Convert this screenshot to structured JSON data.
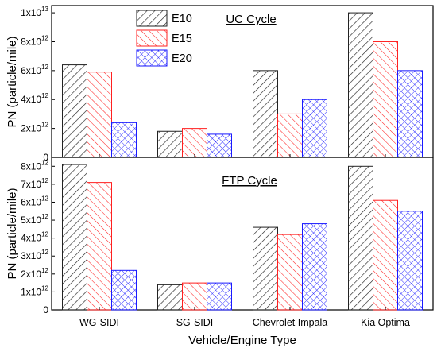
{
  "chart_data": [
    {
      "type": "bar",
      "title": "UC Cycle",
      "ylabel": "PN (particle/mile)",
      "xlabel": "",
      "categories": [
        "WG-SIDI",
        "SG-SIDI",
        "Chevrolet Impala",
        "Kia Optima"
      ],
      "series": [
        {
          "name": "E10",
          "values": [
            6400000000000.0,
            1800000000000.0,
            6000000000000.0,
            10000000000000.0
          ]
        },
        {
          "name": "E15",
          "values": [
            5900000000000.0,
            2000000000000.0,
            3000000000000.0,
            8000000000000.0
          ]
        },
        {
          "name": "E20",
          "values": [
            2400000000000.0,
            1600000000000.0,
            4000000000000.0,
            6000000000000.0
          ]
        }
      ],
      "ylim": [
        0,
        10500000000000.0
      ],
      "yticks": [
        {
          "value": 0,
          "mant": "0",
          "exp": ""
        },
        {
          "value": 2000000000000.0,
          "mant": "2x10",
          "exp": "12"
        },
        {
          "value": 4000000000000.0,
          "mant": "4x10",
          "exp": "12"
        },
        {
          "value": 6000000000000.0,
          "mant": "6x10",
          "exp": "12"
        },
        {
          "value": 8000000000000.0,
          "mant": "8x10",
          "exp": "12"
        },
        {
          "value": 10000000000000.0,
          "mant": "1x10",
          "exp": "13"
        }
      ],
      "legend": "top-left",
      "grid": false
    },
    {
      "type": "bar",
      "title": "FTP Cycle",
      "ylabel": "PN (particle/mile)",
      "xlabel": "Vehicle/Engine Type",
      "categories": [
        "WG-SIDI",
        "SG-SIDI",
        "Chevrolet Impala",
        "Kia Optima"
      ],
      "series": [
        {
          "name": "E10",
          "values": [
            8100000000000.0,
            1400000000000.0,
            4600000000000.0,
            8000000000000.0
          ]
        },
        {
          "name": "E15",
          "values": [
            7100000000000.0,
            1500000000000.0,
            4200000000000.0,
            6100000000000.0
          ]
        },
        {
          "name": "E20",
          "values": [
            2200000000000.0,
            1500000000000.0,
            4800000000000.0,
            5500000000000.0
          ]
        }
      ],
      "ylim": [
        0,
        8500000000000.0
      ],
      "yticks": [
        {
          "value": 0,
          "mant": "0",
          "exp": ""
        },
        {
          "value": 1000000000000.0,
          "mant": "1x10",
          "exp": "12"
        },
        {
          "value": 2000000000000.0,
          "mant": "2x10",
          "exp": "12"
        },
        {
          "value": 3000000000000.0,
          "mant": "3x10",
          "exp": "12"
        },
        {
          "value": 4000000000000.0,
          "mant": "4x10",
          "exp": "12"
        },
        {
          "value": 5000000000000.0,
          "mant": "5x10",
          "exp": "12"
        },
        {
          "value": 6000000000000.0,
          "mant": "6x10",
          "exp": "12"
        },
        {
          "value": 7000000000000.0,
          "mant": "7x10",
          "exp": "12"
        },
        {
          "value": 8000000000000.0,
          "mant": "8x10",
          "exp": "12"
        }
      ],
      "grid": false
    }
  ],
  "colors": {
    "E10": "#222222",
    "E15": "#ff2020",
    "E20": "#1a1aff"
  },
  "patterns": {
    "E10": "diagonal-forward",
    "E15": "diagonal-back",
    "E20": "crosshatch"
  }
}
